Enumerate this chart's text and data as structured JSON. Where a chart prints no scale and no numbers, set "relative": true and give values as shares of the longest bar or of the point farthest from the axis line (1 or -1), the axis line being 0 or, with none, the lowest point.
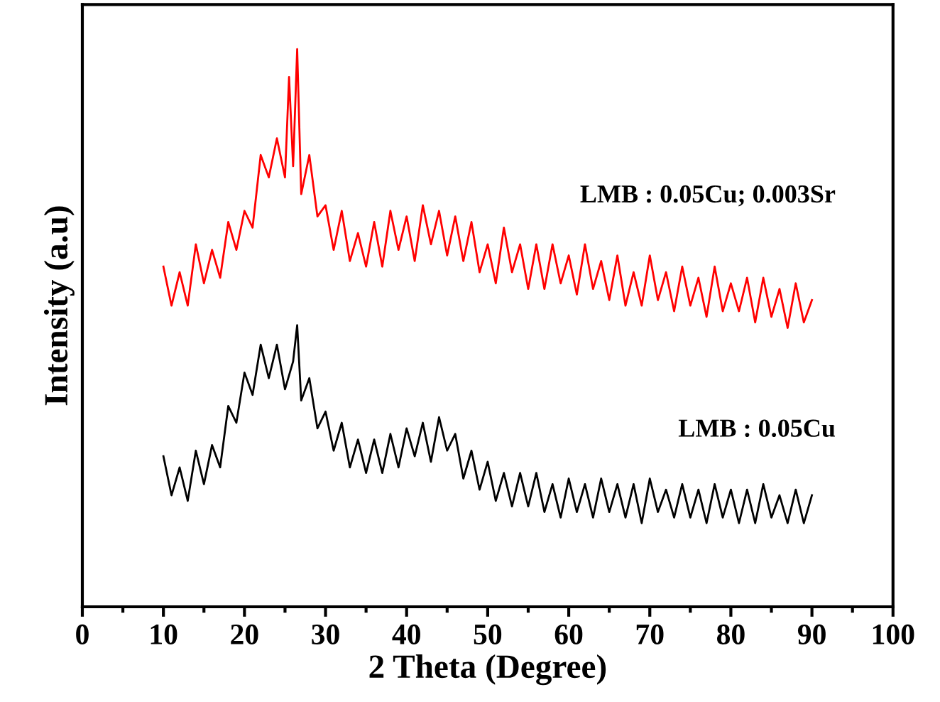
{
  "chart_data": {
    "type": "line",
    "relative": true,
    "xlabel": "2 Theta (Degree)",
    "ylabel": "Intensity (a.u)",
    "xlim": [
      0,
      100
    ],
    "xticks": [
      0,
      {
        "value": 5,
        "label": null
      },
      10,
      {
        "value": 15,
        "label": null
      },
      20,
      {
        "value": 25,
        "label": null
      },
      30,
      {
        "value": 35,
        "label": null
      },
      40,
      {
        "value": 45,
        "label": null
      },
      50,
      {
        "value": 55,
        "label": null
      },
      60,
      {
        "value": 65,
        "label": null
      },
      70,
      {
        "value": 75,
        "label": null
      },
      80,
      {
        "value": 85,
        "label": null
      },
      90,
      {
        "value": 95,
        "label": null
      },
      100
    ],
    "tick_labels": "x",
    "grid": false,
    "legend": false,
    "marker": "none",
    "line_style": "solid",
    "series": [
      {
        "name": "LMB : 0.05Cu; 0.003Sr",
        "color": "#ff0000",
        "x": [
          10,
          11,
          12,
          13,
          14,
          15,
          16,
          17,
          18,
          19,
          20,
          21,
          22,
          23,
          24,
          25,
          25.5,
          26,
          26.5,
          27,
          28,
          29,
          30,
          31,
          32,
          33,
          34,
          35,
          36,
          37,
          38,
          39,
          40,
          41,
          42,
          43,
          44,
          45,
          46,
          47,
          48,
          49,
          50,
          51,
          52,
          53,
          54,
          55,
          56,
          57,
          58,
          59,
          60,
          61,
          62,
          63,
          64,
          65,
          66,
          67,
          68,
          69,
          70,
          71,
          72,
          73,
          74,
          75,
          76,
          77,
          78,
          79,
          80,
          81,
          82,
          83,
          84,
          85,
          86,
          87,
          88,
          89,
          90
        ],
        "values": [
          0.61,
          0.54,
          0.6,
          0.54,
          0.65,
          0.58,
          0.64,
          0.59,
          0.69,
          0.64,
          0.71,
          0.68,
          0.81,
          0.77,
          0.84,
          0.77,
          0.95,
          0.79,
          1.0,
          0.74,
          0.81,
          0.7,
          0.72,
          0.64,
          0.71,
          0.62,
          0.67,
          0.61,
          0.69,
          0.61,
          0.71,
          0.64,
          0.7,
          0.62,
          0.72,
          0.65,
          0.71,
          0.63,
          0.7,
          0.62,
          0.69,
          0.6,
          0.65,
          0.58,
          0.68,
          0.6,
          0.65,
          0.57,
          0.65,
          0.57,
          0.65,
          0.58,
          0.63,
          0.56,
          0.65,
          0.57,
          0.62,
          0.55,
          0.63,
          0.54,
          0.6,
          0.54,
          0.63,
          0.55,
          0.6,
          0.53,
          0.61,
          0.54,
          0.59,
          0.52,
          0.61,
          0.53,
          0.58,
          0.53,
          0.59,
          0.51,
          0.59,
          0.52,
          0.57,
          0.5,
          0.58,
          0.51,
          0.55
        ]
      },
      {
        "name": "LMB : 0.05Cu",
        "color": "#000000",
        "x": [
          10,
          11,
          12,
          13,
          14,
          15,
          16,
          17,
          18,
          19,
          20,
          21,
          22,
          23,
          24,
          25,
          26,
          26.5,
          27,
          28,
          29,
          30,
          31,
          32,
          33,
          34,
          35,
          36,
          37,
          38,
          39,
          40,
          41,
          42,
          43,
          44,
          45,
          46,
          47,
          48,
          49,
          50,
          51,
          52,
          53,
          54,
          55,
          56,
          57,
          58,
          59,
          60,
          61,
          62,
          63,
          64,
          65,
          66,
          67,
          68,
          69,
          70,
          71,
          72,
          73,
          74,
          75,
          76,
          77,
          78,
          79,
          80,
          81,
          82,
          83,
          84,
          85,
          86,
          87,
          88,
          89,
          90
        ],
        "values": [
          0.27,
          0.2,
          0.25,
          0.19,
          0.28,
          0.22,
          0.29,
          0.25,
          0.36,
          0.33,
          0.42,
          0.38,
          0.47,
          0.41,
          0.47,
          0.39,
          0.44,
          0.505,
          0.37,
          0.41,
          0.32,
          0.35,
          0.28,
          0.33,
          0.25,
          0.3,
          0.24,
          0.3,
          0.24,
          0.31,
          0.25,
          0.32,
          0.27,
          0.33,
          0.26,
          0.34,
          0.28,
          0.31,
          0.23,
          0.28,
          0.21,
          0.26,
          0.19,
          0.24,
          0.18,
          0.24,
          0.18,
          0.24,
          0.17,
          0.22,
          0.16,
          0.23,
          0.17,
          0.22,
          0.16,
          0.23,
          0.17,
          0.22,
          0.16,
          0.22,
          0.15,
          0.23,
          0.17,
          0.21,
          0.16,
          0.22,
          0.16,
          0.21,
          0.15,
          0.22,
          0.16,
          0.21,
          0.15,
          0.21,
          0.15,
          0.22,
          0.16,
          0.2,
          0.15,
          0.21,
          0.15,
          0.2
        ]
      }
    ]
  }
}
